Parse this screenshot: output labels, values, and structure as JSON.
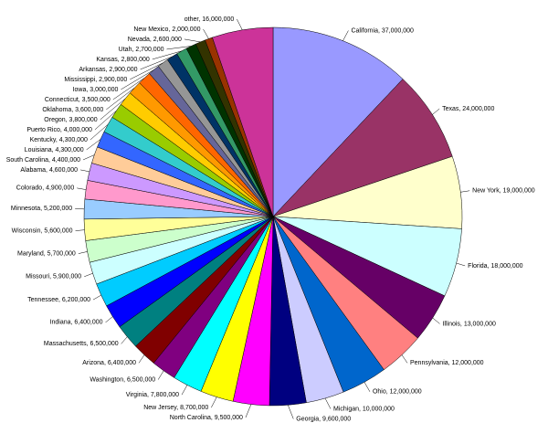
{
  "chart_data": {
    "type": "pie",
    "values": [
      37000000,
      24000000,
      19000000,
      18000000,
      13000000,
      12000000,
      12000000,
      10000000,
      9600000,
      9500000,
      8700000,
      7800000,
      6500000,
      6400000,
      6500000,
      6400000,
      6200000,
      5900000,
      5700000,
      5600000,
      5200000,
      4900000,
      4600000,
      4400000,
      4300000,
      4300000,
      4000000,
      3800000,
      3600000,
      3500000,
      3000000,
      2900000,
      2900000,
      2800000,
      2700000,
      2600000,
      2000000,
      16000000
    ],
    "value_labels": [
      "California, 37,000,000",
      "Texas, 24,000,000",
      "New York, 19,000,000",
      "Florida, 18,000,000",
      "Illinois, 13,000,000",
      "Pennsylvania, 12,000,000",
      "Ohio, 12,000,000",
      "Michigan, 10,000,000",
      "Georgia, 9,600,000",
      "North Carolina, 9,500,000",
      "New Jersey, 8,700,000",
      "Virginia, 7,800,000",
      "Washington, 6,500,000",
      "Arizona, 6,400,000",
      "Massachusetts, 6,500,000",
      "Indiana, 6,400,000",
      "Tennessee, 6,200,000",
      "Missouri, 5,900,000",
      "Maryland, 5,700,000",
      "Wisconsin, 5,600,000",
      "Minnesota, 5,200,000",
      "Colorado, 4,900,000",
      "Alabama, 4,600,000",
      "South Carolina, 4,400,000",
      "Louisiana, 4,300,000",
      "Kentucky, 4,300,000",
      "Puerto Rico, 4,000,000",
      "Oregon, 3,800,000",
      "Oklahoma, 3,600,000",
      "Connecticut, 3,500,000",
      "Iowa, 3,000,000",
      "Mississippi, 2,900,000",
      "Arkansas, 2,900,000",
      "Kansas, 2,800,000",
      "Utah, 2,700,000",
      "Nevada, 2,600,000",
      "New Mexico, 2,000,000",
      "other, 16,000,000"
    ],
    "colors": [
      "#9999ff",
      "#993366",
      "#ffffcc",
      "#ccffff",
      "#660066",
      "#ff8080",
      "#0066cc",
      "#ccccff",
      "#000080",
      "#ff00ff",
      "#ffff00",
      "#00ffff",
      "#800080",
      "#800000",
      "#008080",
      "#0000ff",
      "#00ccff",
      "#ccffff",
      "#ccffcc",
      "#ffff99",
      "#99ccff",
      "#ff99cc",
      "#cc99ff",
      "#ffcc99",
      "#3366ff",
      "#33cccc",
      "#99cc00",
      "#ffcc00",
      "#ff9900",
      "#ff6600",
      "#666699",
      "#969696",
      "#003366",
      "#339966",
      "#003300",
      "#333300",
      "#993300",
      "#cc3399"
    ]
  }
}
